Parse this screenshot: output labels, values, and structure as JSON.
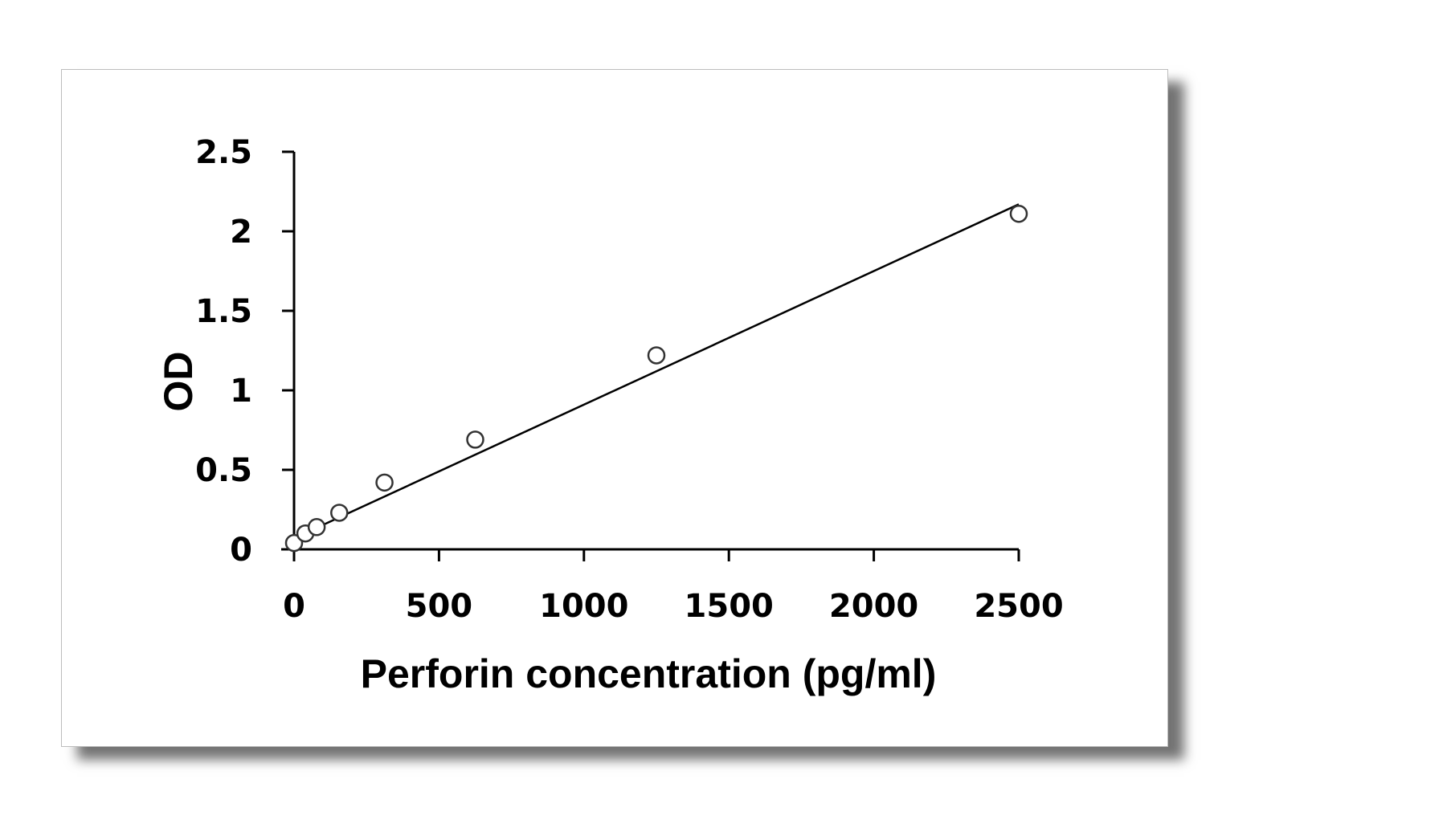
{
  "chart_data": {
    "type": "scatter",
    "title": "",
    "xlabel": "Perforin concentration (pg/ml)",
    "ylabel": "OD",
    "xlim": [
      0,
      2500
    ],
    "ylim": [
      0,
      2.5
    ],
    "x_ticks": [
      "0",
      "500",
      "1000",
      "1500",
      "2000",
      "2500"
    ],
    "y_ticks": [
      "0",
      "0.5",
      "1",
      "1.5",
      "2",
      "2.5"
    ],
    "grid": false,
    "legend": "none",
    "series": [
      {
        "x": [
          0,
          39,
          78,
          156,
          312,
          625,
          1250,
          2500
        ],
        "y": [
          0.04,
          0.1,
          0.14,
          0.23,
          0.42,
          0.69,
          1.22,
          2.11
        ]
      }
    ],
    "trendline": {
      "type": "linear",
      "x": [
        0,
        2500
      ],
      "y": [
        0.07,
        2.17
      ]
    },
    "colors": {
      "line": "#000000",
      "marker_fill": "#ffffff",
      "marker_stroke": "#333333"
    }
  }
}
